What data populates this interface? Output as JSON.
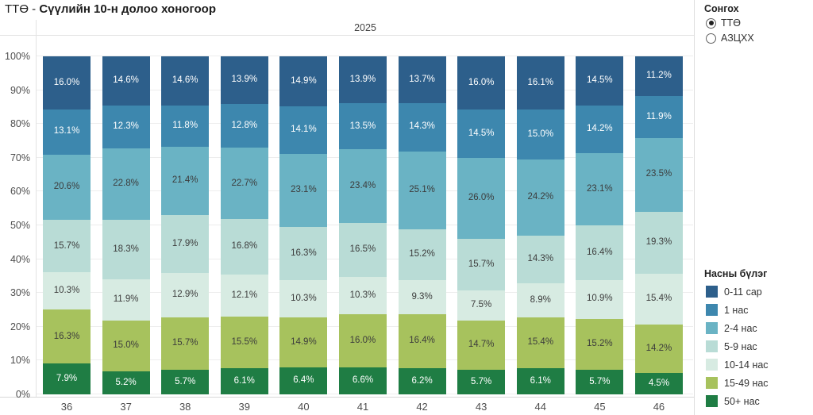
{
  "title": {
    "prefix": "ТТӨ - ",
    "main": "Сүүлийн 10-н долоо хоногоор"
  },
  "selector": {
    "title": "Сонгох",
    "options": [
      {
        "label": "ТТӨ",
        "selected": true
      },
      {
        "label": "АЗЦХХ",
        "selected": false
      }
    ]
  },
  "chart_data": {
    "type": "bar",
    "subtype": "stacked-100-percent",
    "title": "ТТӨ - Сүүлийн 10-н долоо хоногоор",
    "year_header": "2025",
    "legend_title": "Насны бүлэг",
    "legend_position": "right",
    "grid": true,
    "ylim": [
      0,
      100
    ],
    "y_ticks": [
      "0%",
      "10%",
      "20%",
      "30%",
      "40%",
      "50%",
      "60%",
      "70%",
      "80%",
      "90%",
      "100%"
    ],
    "categories": [
      "36",
      "37",
      "38",
      "39",
      "40",
      "41",
      "42",
      "43",
      "44",
      "45",
      "46"
    ],
    "series": [
      {
        "name": "0-11 сар",
        "color": "#2d5f8b",
        "label_color": "#ffffff",
        "values": [
          16.0,
          14.6,
          14.6,
          13.9,
          14.9,
          13.9,
          13.7,
          16.0,
          16.1,
          14.5,
          11.2
        ]
      },
      {
        "name": "1 нас",
        "color": "#3d87ae",
        "label_color": "#ffffff",
        "values": [
          13.1,
          12.3,
          11.8,
          12.8,
          14.1,
          13.5,
          14.3,
          14.5,
          15.0,
          14.2,
          11.9
        ]
      },
      {
        "name": "2-4 нас",
        "color": "#6ab3c4",
        "label_color": "#3c3c3c",
        "values": [
          20.6,
          22.8,
          21.4,
          22.7,
          23.1,
          23.4,
          25.1,
          26.0,
          24.2,
          23.1,
          23.5
        ]
      },
      {
        "name": "5-9 нас",
        "color": "#b9dcd6",
        "label_color": "#3c3c3c",
        "values": [
          15.7,
          18.3,
          17.9,
          16.8,
          16.3,
          16.5,
          15.2,
          15.7,
          14.3,
          16.4,
          19.3
        ]
      },
      {
        "name": "10-14 нас",
        "color": "#d7ebe2",
        "label_color": "#3c3c3c",
        "values": [
          10.3,
          11.9,
          12.9,
          12.1,
          10.3,
          10.3,
          9.3,
          7.5,
          8.9,
          10.9,
          15.4
        ]
      },
      {
        "name": "15-49 нас",
        "color": "#a7c25d",
        "label_color": "#3c3c3c",
        "values": [
          16.3,
          15.0,
          15.7,
          15.5,
          14.9,
          16.0,
          16.4,
          14.7,
          15.4,
          15.2,
          14.2
        ]
      },
      {
        "name": "50+ нас",
        "color": "#1f7d44",
        "label_color": "#ffffff",
        "values": [
          7.9,
          5.2,
          5.7,
          6.1,
          6.4,
          6.6,
          6.2,
          5.7,
          6.1,
          5.7,
          4.5
        ]
      }
    ]
  }
}
